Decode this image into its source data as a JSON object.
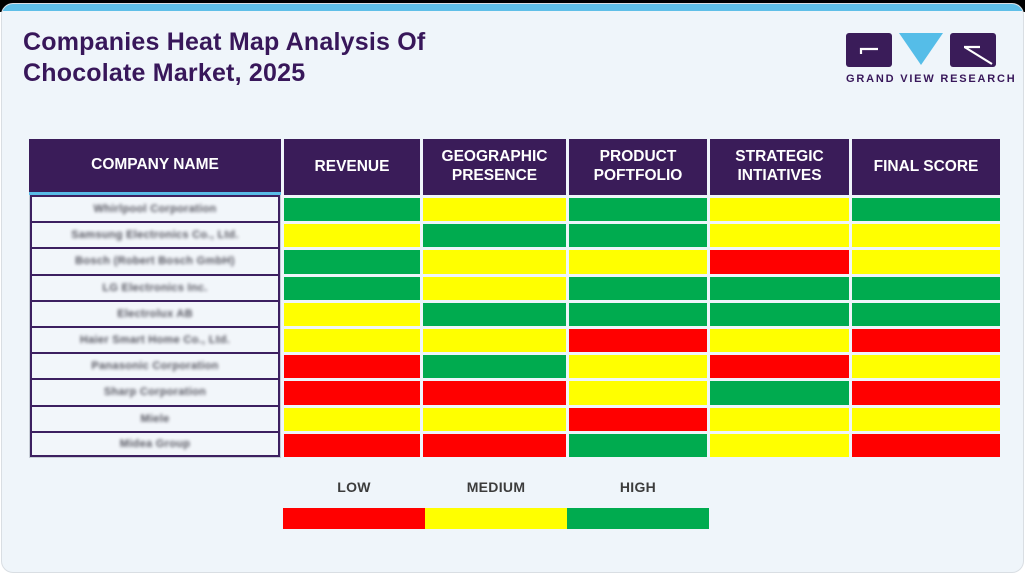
{
  "page": {
    "title_line1": "Companies Heat Map Analysis Of",
    "title_line2": "Chocolate Market, 2025"
  },
  "logo": {
    "name": "grand-view-research-logo",
    "text": "GRAND VIEW RESEARCH"
  },
  "colors": {
    "low": "#FF0000",
    "medium": "#FFFF00",
    "high": "#00AB4F",
    "header_bg": "#3A1C59",
    "accent_blue": "#59BCE7",
    "title_purple": "#38175A"
  },
  "chart_data": {
    "type": "heatmap",
    "title": "Companies Heat Map Analysis Of Chocolate Market, 2025",
    "row_header": "COMPANY NAME",
    "columns": [
      "REVENUE",
      "GEOGRAPHIC PRESENCE",
      "PRODUCT POFTFOLIO",
      "STRATEGIC INTIATIVES",
      "FINAL SCORE"
    ],
    "rows": [
      "Whirlpool Corporation",
      "Samsung Electronics Co., Ltd.",
      "Bosch (Robert Bosch GmbH)",
      "LG Electronics Inc.",
      "Electrolux AB",
      "Haier Smart Home Co., Ltd.",
      "Panasonic Corporation",
      "Sharp Corporation",
      "Miele",
      "Midea Group"
    ],
    "values": [
      [
        "high",
        "medium",
        "high",
        "medium",
        "high"
      ],
      [
        "medium",
        "high",
        "high",
        "medium",
        "medium"
      ],
      [
        "high",
        "medium",
        "medium",
        "low",
        "medium"
      ],
      [
        "high",
        "medium",
        "high",
        "high",
        "high"
      ],
      [
        "medium",
        "high",
        "high",
        "high",
        "high"
      ],
      [
        "medium",
        "medium",
        "low",
        "medium",
        "low"
      ],
      [
        "low",
        "high",
        "medium",
        "low",
        "medium"
      ],
      [
        "low",
        "low",
        "medium",
        "high",
        "low"
      ],
      [
        "medium",
        "medium",
        "low",
        "medium",
        "medium"
      ],
      [
        "low",
        "low",
        "high",
        "medium",
        "low"
      ]
    ],
    "scale": {
      "low": "#FF0000",
      "medium": "#FFFF00",
      "high": "#00AB4F"
    },
    "legend_position": "bottom"
  },
  "legend": {
    "items": [
      {
        "label": "LOW",
        "level": "low"
      },
      {
        "label": "MEDIUM",
        "level": "medium"
      },
      {
        "label": "HIGH",
        "level": "high"
      }
    ]
  }
}
